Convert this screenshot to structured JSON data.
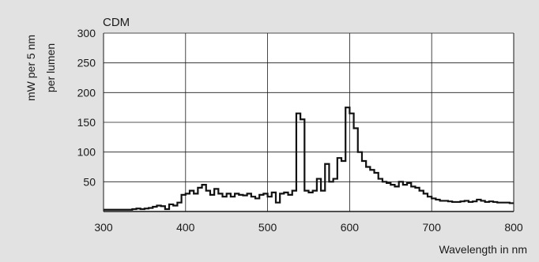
{
  "chart_data": {
    "type": "line",
    "title": "CDM",
    "xlabel": "Wavelength in nm",
    "ylabel_lines": [
      "mW per 5 nm",
      "per lumen"
    ],
    "xlim": [
      300,
      800
    ],
    "ylim": [
      0,
      300
    ],
    "x_ticks": [
      300,
      400,
      500,
      600,
      700,
      800
    ],
    "y_ticks": [
      50,
      100,
      150,
      200,
      250,
      300
    ],
    "grid": true,
    "step_width_nm": 5,
    "colors": {
      "background": "#e2e2e3",
      "plot_area": "#ffffff",
      "line": "#111111",
      "grid": "#1a1a1a"
    },
    "series": [
      {
        "x": [
          300,
          305,
          310,
          315,
          320,
          325,
          330,
          335,
          340,
          345,
          350,
          355,
          360,
          365,
          370,
          375,
          380,
          385,
          390,
          395,
          400,
          405,
          410,
          415,
          420,
          425,
          430,
          435,
          440,
          445,
          450,
          455,
          460,
          465,
          470,
          475,
          480,
          485,
          490,
          495,
          500,
          505,
          510,
          515,
          520,
          525,
          530,
          535,
          540,
          545,
          550,
          555,
          560,
          565,
          570,
          575,
          580,
          585,
          590,
          595,
          600,
          605,
          610,
          615,
          620,
          625,
          630,
          635,
          640,
          645,
          650,
          655,
          660,
          665,
          670,
          675,
          680,
          685,
          690,
          695,
          700,
          705,
          710,
          715,
          720,
          725,
          730,
          735,
          740,
          745,
          750,
          755,
          760,
          765,
          770,
          775,
          780,
          785,
          790,
          795
        ],
        "y": [
          3,
          3,
          3,
          3,
          3,
          3,
          3,
          4,
          5,
          4,
          5,
          6,
          8,
          10,
          9,
          4,
          12,
          10,
          15,
          28,
          30,
          35,
          30,
          40,
          45,
          35,
          28,
          38,
          30,
          25,
          30,
          25,
          30,
          28,
          27,
          30,
          25,
          22,
          28,
          30,
          25,
          32,
          15,
          30,
          32,
          28,
          35,
          165,
          155,
          35,
          32,
          35,
          55,
          35,
          80,
          50,
          55,
          90,
          85,
          175,
          165,
          140,
          100,
          85,
          75,
          70,
          65,
          55,
          50,
          48,
          45,
          42,
          50,
          45,
          48,
          42,
          40,
          35,
          30,
          25,
          22,
          20,
          18,
          18,
          17,
          16,
          16,
          17,
          18,
          16,
          17,
          20,
          18,
          16,
          17,
          16,
          15,
          15,
          15,
          14
        ]
      }
    ]
  }
}
